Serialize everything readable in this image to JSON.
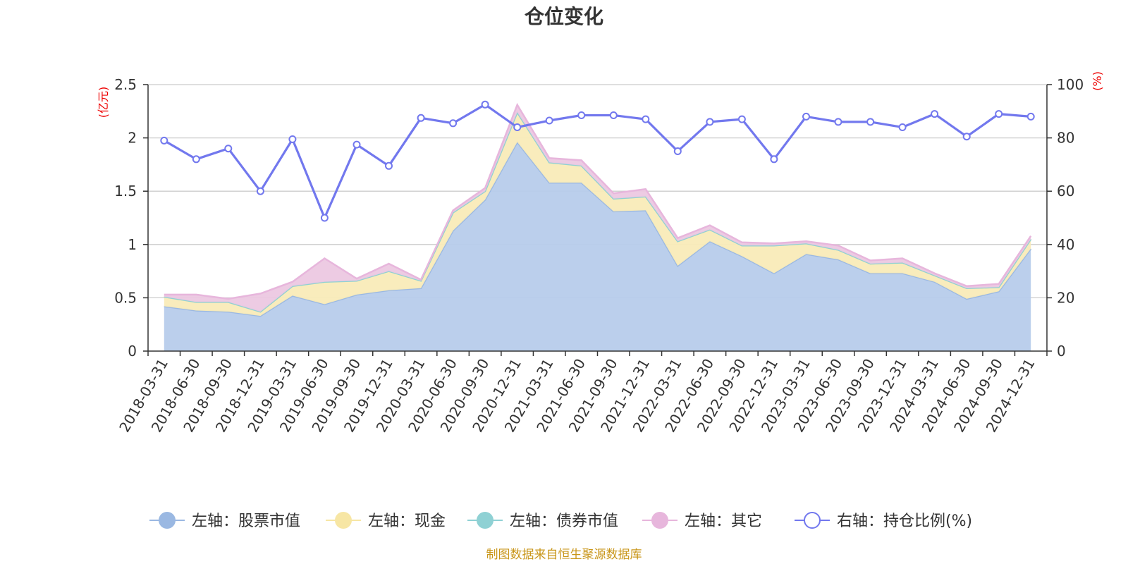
{
  "chart_data": {
    "type": "area",
    "title": "仓位变化",
    "left_unit": "(亿元)",
    "right_unit": "(%)",
    "categories": [
      "2018-03-31",
      "2018-06-30",
      "2018-09-30",
      "2018-12-31",
      "2019-03-31",
      "2019-06-30",
      "2019-09-30",
      "2019-12-31",
      "2020-03-31",
      "2020-06-30",
      "2020-09-30",
      "2020-12-31",
      "2021-03-31",
      "2021-06-30",
      "2021-09-30",
      "2021-12-31",
      "2022-03-31",
      "2022-06-30",
      "2022-09-30",
      "2022-12-31",
      "2023-03-31",
      "2023-06-30",
      "2023-09-30",
      "2023-12-31",
      "2024-03-31",
      "2024-06-30",
      "2024-09-30",
      "2024-12-31"
    ],
    "x_tick_labels": [
      "2018-03-31",
      "2018-06-30",
      "2018-09-30",
      "2018-12-31",
      "2019-03-31",
      "2019-06-30",
      "2019-09-30",
      "2019-12-31",
      "2020-03-31",
      "2020-06-30",
      "2020-09-30",
      "2020-12-31",
      "2021-03-31",
      "2021-06-30",
      "2021-09-30",
      "2021-12-31",
      "2022-03-31",
      "2022-06-30",
      "2022-09-30",
      "2022-12-31",
      "2023-03-31",
      "2023-06-30",
      "2023-09-30",
      "2023-12-31",
      "2024-03-31",
      "2024-06-30",
      "2024-09-30",
      "2024-12-31"
    ],
    "left_axis": {
      "min": 0,
      "max": 2.5,
      "ticks": [
        0,
        0.5,
        1,
        1.5,
        2,
        2.5
      ],
      "tick_labels": [
        "0",
        "0.5",
        "1",
        "1.5",
        "2",
        "2.5"
      ]
    },
    "right_axis": {
      "min": 0,
      "max": 100,
      "ticks": [
        0,
        20,
        40,
        60,
        80,
        100
      ],
      "tick_labels": [
        "0",
        "20",
        "40",
        "60",
        "80",
        "100"
      ]
    },
    "grid": true,
    "legend_position": "bottom",
    "stacked_series": [
      {
        "name": "左轴：股票市值",
        "color": "#9ab8e2",
        "fill": "#b7cceb",
        "values": [
          0.42,
          0.38,
          0.37,
          0.33,
          0.52,
          0.44,
          0.53,
          0.57,
          0.59,
          1.13,
          1.42,
          1.96,
          1.58,
          1.58,
          1.31,
          1.32,
          0.8,
          1.03,
          0.89,
          0.73,
          0.91,
          0.86,
          0.73,
          0.73,
          0.65,
          0.49,
          0.56,
          0.96
        ]
      },
      {
        "name": "左轴：现金",
        "color": "#f7e6a4",
        "fill": "#f9ebb8",
        "values": [
          0.09,
          0.08,
          0.09,
          0.04,
          0.09,
          0.21,
          0.13,
          0.18,
          0.07,
          0.17,
          0.08,
          0.28,
          0.19,
          0.16,
          0.12,
          0.13,
          0.23,
          0.11,
          0.1,
          0.26,
          0.1,
          0.09,
          0.09,
          0.1,
          0.06,
          0.1,
          0.04,
          0.09
        ]
      },
      {
        "name": "左轴：债券市值",
        "color": "#8fd1d4",
        "fill": "#a7dcde",
        "values": [
          0,
          0,
          0,
          0,
          0,
          0,
          0,
          0,
          0,
          0,
          0,
          0,
          0,
          0,
          0,
          0,
          0,
          0,
          0,
          0,
          0,
          0,
          0,
          0,
          0,
          0,
          0,
          0
        ]
      },
      {
        "name": "左轴：其它",
        "color": "#e7b6dc",
        "fill": "#ecc8e2",
        "values": [
          0.02,
          0.07,
          0.03,
          0.17,
          0.04,
          0.22,
          0.02,
          0.07,
          0.01,
          0.02,
          0.03,
          0.07,
          0.04,
          0.05,
          0.05,
          0.07,
          0.03,
          0.04,
          0.03,
          0.02,
          0.02,
          0.04,
          0.03,
          0.04,
          0.02,
          0.02,
          0.03,
          0.03
        ]
      }
    ],
    "line_series": {
      "name": "右轴：持仓比例(%)",
      "color": "#7278ee",
      "values": [
        79,
        72,
        76,
        60,
        79.5,
        50,
        77.5,
        69.5,
        87.5,
        85.5,
        92.5,
        84,
        86.5,
        88.5,
        88.5,
        87,
        75,
        86,
        87,
        72,
        88,
        86,
        86,
        84,
        89,
        80.5,
        89,
        88
      ]
    }
  },
  "footer": {
    "source": "制图数据来自恒生聚源数据库"
  }
}
